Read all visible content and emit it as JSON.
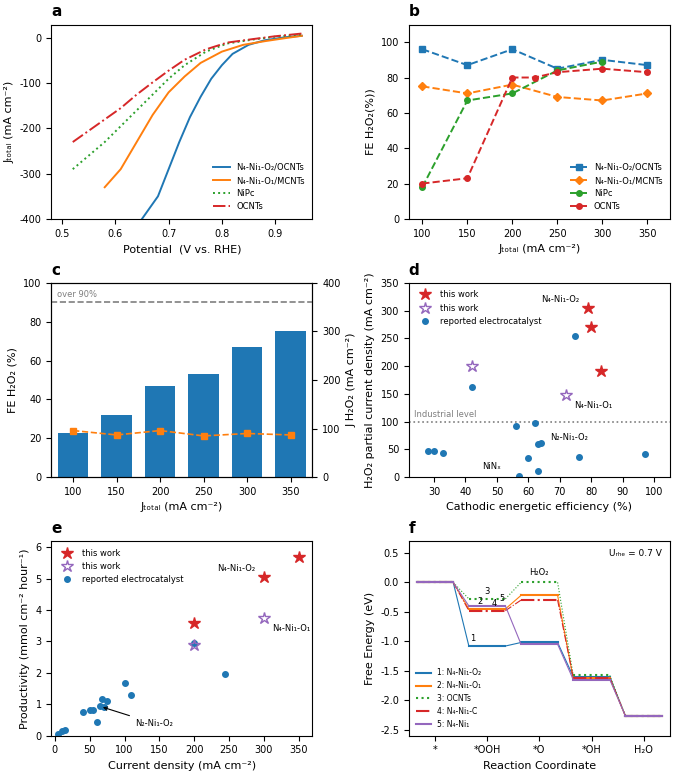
{
  "chart_data": [
    {
      "type": "line",
      "title": "a",
      "xlabel": "Potential  (V vs. RHE)",
      "ylabel": "Jₜₒₜₐₗ (mA cm⁻²)",
      "xlim": [
        0.48,
        0.97
      ],
      "ylim": [
        -400,
        30
      ],
      "xticks": [
        0.5,
        0.6,
        0.7,
        0.8,
        0.9
      ],
      "yticks": [
        -400,
        -300,
        -200,
        -100,
        0
      ],
      "legend": "lower right",
      "series": [
        {
          "name": "N₄-Ni₁-O₂/OCNTs",
          "color": "#1f77b4",
          "line_style": "solid",
          "x": [
            0.65,
            0.68,
            0.7,
            0.72,
            0.74,
            0.76,
            0.78,
            0.8,
            0.82,
            0.85,
            0.88,
            0.92,
            0.95
          ],
          "values": [
            -400,
            -350,
            -290,
            -230,
            -175,
            -130,
            -90,
            -60,
            -35,
            -15,
            -5,
            2,
            5
          ]
        },
        {
          "name": "N₄-Ni₁-O₁/MCNTs",
          "color": "#ff7f0e",
          "line_style": "solid",
          "x": [
            0.58,
            0.61,
            0.63,
            0.65,
            0.67,
            0.7,
            0.73,
            0.76,
            0.8,
            0.84,
            0.88,
            0.92,
            0.95
          ],
          "values": [
            -330,
            -290,
            -250,
            -210,
            -170,
            -120,
            -85,
            -55,
            -30,
            -15,
            -7,
            0,
            5
          ]
        },
        {
          "name": "NiPc",
          "color": "#2ca02c",
          "line_style": "dotted",
          "x": [
            0.52,
            0.55,
            0.58,
            0.61,
            0.64,
            0.67,
            0.7,
            0.73,
            0.77,
            0.81,
            0.86,
            0.9,
            0.95
          ],
          "values": [
            -290,
            -260,
            -230,
            -195,
            -160,
            -125,
            -90,
            -60,
            -30,
            -12,
            -3,
            3,
            8
          ]
        },
        {
          "name": "OCNTs",
          "color": "#d62728",
          "line_style": "dashdot",
          "x": [
            0.52,
            0.55,
            0.58,
            0.61,
            0.64,
            0.67,
            0.7,
            0.73,
            0.77,
            0.81,
            0.86,
            0.9,
            0.95
          ],
          "values": [
            -230,
            -205,
            -180,
            -155,
            -125,
            -98,
            -72,
            -48,
            -25,
            -10,
            -2,
            4,
            10
          ]
        }
      ]
    },
    {
      "type": "line",
      "title": "b",
      "xlabel": "Jₜₒₜₐₗ (mA cm⁻²)",
      "ylabel": "FE H₂O₂(%))",
      "xlim": [
        85,
        375
      ],
      "ylim": [
        0,
        110
      ],
      "xticks": [
        100,
        150,
        200,
        250,
        300,
        350
      ],
      "yticks": [
        0,
        20,
        40,
        60,
        80,
        100
      ],
      "legend": "lower right",
      "series": [
        {
          "name": "N₄-Ni₁-O₂/OCNTs",
          "color": "#1f77b4",
          "marker": "square",
          "line_style": "dashed",
          "x": [
            100,
            150,
            200,
            250,
            300,
            350
          ],
          "values": [
            96,
            87,
            96,
            85,
            90,
            87
          ]
        },
        {
          "name": "N₄-Ni₁-O₁/MCNTs",
          "color": "#ff7f0e",
          "marker": "diamond",
          "line_style": "dashed",
          "x": [
            100,
            150,
            200,
            250,
            300,
            350
          ],
          "values": [
            75,
            71,
            76,
            69,
            67,
            71
          ]
        },
        {
          "name": "NiPc",
          "color": "#2ca02c",
          "marker": "circle",
          "line_style": "dashed",
          "x": [
            100,
            150,
            200,
            250,
            300
          ],
          "values": [
            18,
            67,
            71,
            84,
            89
          ]
        },
        {
          "name": "OCNTs",
          "color": "#d62728",
          "marker": "circle",
          "line_style": "dashed",
          "x": [
            100,
            150,
            200,
            225,
            250,
            300,
            350
          ],
          "values": [
            20,
            23,
            80,
            80,
            83,
            85,
            83
          ]
        }
      ]
    },
    {
      "type": "bar",
      "title": "c",
      "xlabel": "Jₜₒₜₐₗ (mA cm⁻²)",
      "ylabel": "FE H₂O₂ (%)",
      "y2label": "J H₂O₂ (mA cm⁻²)",
      "x": [
        100,
        150,
        200,
        250,
        300,
        350
      ],
      "xlim": [
        75,
        375
      ],
      "xticks": [
        100,
        150,
        200,
        250,
        300,
        350
      ],
      "ylim": [
        0,
        100
      ],
      "yticks": [
        0,
        20,
        40,
        60,
        80,
        100
      ],
      "y2lim": [
        0,
        400
      ],
      "y2ticks": [
        0,
        100,
        200,
        300,
        400
      ],
      "series": [
        {
          "type": "bar",
          "color": "#1f77b4",
          "values": [
            23,
            32,
            47,
            53,
            67,
            75
          ]
        },
        {
          "type": "line",
          "axis": "y2",
          "color": "#ff7f0e",
          "marker": "square",
          "line_style": "dashed",
          "values": [
            96,
            87,
            96,
            85,
            90,
            87
          ]
        }
      ],
      "hlines": [
        {
          "y": 360,
          "axis": "y2",
          "color": "#7f7f7f",
          "line_style": "dashed",
          "label": "over 90%"
        }
      ]
    },
    {
      "type": "scatter",
      "title": "d",
      "xlabel": "Cathodic energetic efficiency (%)",
      "ylabel": "H₂O₂ partial current density (mA cm⁻²)",
      "xlim": [
        22,
        105
      ],
      "ylim": [
        0,
        350
      ],
      "xticks": [
        30,
        40,
        50,
        60,
        70,
        80,
        90,
        100
      ],
      "yticks": [
        0,
        50,
        100,
        150,
        200,
        250,
        300,
        350
      ],
      "legend": "upper left",
      "hlines": [
        {
          "y": 100,
          "color": "#7f7f7f",
          "line_style": "dotted",
          "label": "Industrial level"
        }
      ],
      "annotations": [
        {
          "text": "NiNₓ"
        },
        {
          "text": "N₂-Ni₁-O₂"
        }
      ],
      "series": [
        {
          "name": "this work",
          "marker": "star",
          "color": "#d62728",
          "x": [
            79,
            80,
            83
          ],
          "values": [
            305,
            270,
            192
          ],
          "point_labels": [
            "N₄-Ni₁-O₂",
            null,
            null
          ]
        },
        {
          "name": "this work",
          "marker": "open_star",
          "color": "#9467bd",
          "x": [
            42,
            72
          ],
          "values": [
            200,
            148
          ],
          "point_labels": [
            null,
            "N₄-Ni₁-O₁"
          ]
        },
        {
          "name": "reported electrocatalyst",
          "marker": "circle",
          "color": "#1f77b4",
          "x": [
            28,
            30,
            33,
            42,
            56,
            57,
            60,
            62,
            63,
            63,
            64,
            75,
            76,
            97
          ],
          "values": [
            47,
            47,
            44,
            162,
            92,
            3,
            35,
            98,
            11,
            60,
            62,
            255,
            36,
            41
          ]
        }
      ]
    },
    {
      "type": "scatter",
      "title": "e",
      "xlabel": "Current density (mA cm⁻²)",
      "ylabel": "Productivity (mmol cm⁻² hour⁻¹)",
      "xlim": [
        -5,
        370
      ],
      "ylim": [
        0,
        6.2
      ],
      "xticks": [
        0,
        50,
        100,
        150,
        200,
        250,
        300,
        350
      ],
      "yticks": [
        0,
        1,
        2,
        3,
        4,
        5,
        6
      ],
      "legend": "upper left",
      "annotations": [
        {
          "text": "N₂-Ni₁-O₂",
          "x": 65,
          "y": 0.93
        }
      ],
      "series": [
        {
          "name": "this work",
          "marker": "star",
          "color": "#d62728",
          "x": [
            200,
            300,
            350
          ],
          "values": [
            3.6,
            5.05,
            5.7
          ],
          "point_labels": [
            null,
            "N₄-Ni₁-O₂",
            null
          ]
        },
        {
          "name": "this work",
          "marker": "open_star",
          "color": "#9467bd",
          "x": [
            200,
            300
          ],
          "values": [
            2.88,
            3.75
          ],
          "point_labels": [
            null,
            "N₄-Ni₁-O₁"
          ]
        },
        {
          "name": "reported electrocatalyst",
          "marker": "circle",
          "color": "#1f77b4",
          "x": [
            5,
            10,
            15,
            40,
            50,
            55,
            60,
            65,
            68,
            70,
            75,
            100,
            110,
            200,
            245
          ],
          "values": [
            0.05,
            0.13,
            0.18,
            0.75,
            0.82,
            0.8,
            0.42,
            0.93,
            1.15,
            0.9,
            1.1,
            1.68,
            1.3,
            2.95,
            1.95
          ]
        }
      ]
    },
    {
      "type": "step",
      "title": "f",
      "xlabel": "Reaction Coordinate",
      "ylabel": "Free Energy (eV)",
      "categories": [
        "*",
        "*OOH",
        "*O",
        "*OH",
        "H₂O"
      ],
      "ylim": [
        -2.6,
        0.7
      ],
      "yticks": [
        -2.5,
        -2.0,
        -1.5,
        -1.0,
        -0.5,
        0.0,
        0.5
      ],
      "legend": "lower left",
      "annotations": [
        {
          "text": "Uᵣₕₑ = 0.7 V"
        }
      ],
      "series": [
        {
          "name": "1: N₄-Ni₁-O₂",
          "tag": "1",
          "color": "#1f77b4",
          "line_style": "solid",
          "values": [
            0.0,
            -1.08,
            -1.02,
            -1.6,
            -2.27
          ]
        },
        {
          "name": "2: N₄-Ni₁-O₁",
          "tag": "2",
          "color": "#ff7f0e",
          "line_style": "solid",
          "values": [
            0.0,
            -0.45,
            -0.22,
            -1.63,
            -2.27
          ]
        },
        {
          "name": "3: OCNTs",
          "tag": "3",
          "color": "#2ca02c",
          "line_style": "dotted",
          "values": [
            0.0,
            -0.28,
            0.0,
            -1.58,
            -2.27
          ],
          "point_labels": [
            null,
            null,
            "H₂O₂",
            null,
            null
          ]
        },
        {
          "name": "4: N₄-Ni₁-C",
          "tag": "4",
          "color": "#d62728",
          "line_style": "dashdot",
          "values": [
            0.0,
            -0.48,
            -0.3,
            -1.62,
            -2.27
          ]
        },
        {
          "name": "5: N₄-Ni₁",
          "tag": "5",
          "color": "#9467bd",
          "line_style": "solid",
          "values": [
            0.0,
            -0.4,
            -1.05,
            -1.65,
            -2.27
          ]
        }
      ]
    }
  ]
}
